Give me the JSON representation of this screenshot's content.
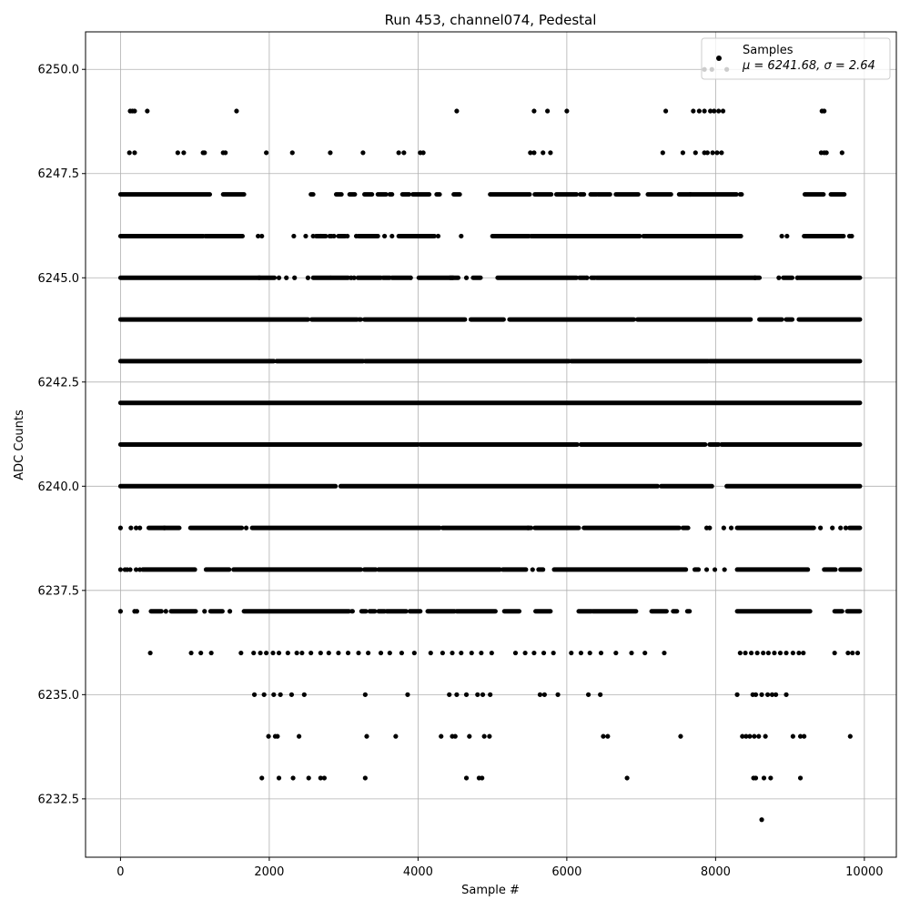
{
  "chart_data": {
    "type": "scatter",
    "title": "Run 453, channel074, Pedestal",
    "xlabel": "Sample #",
    "ylabel": "ADC Counts",
    "xlim": [
      -470,
      10430
    ],
    "ylim": [
      6231.1,
      6250.9
    ],
    "x_ticks": [
      0,
      2000,
      4000,
      6000,
      8000,
      10000
    ],
    "y_ticks": [
      6232.5,
      6235.0,
      6237.5,
      6240.0,
      6242.5,
      6245.0,
      6247.5,
      6250.0
    ],
    "x_tick_labels": [
      "0",
      "2000",
      "4000",
      "6000",
      "8000",
      "10000"
    ],
    "y_tick_labels": [
      "6232.5",
      "6235.0",
      "6237.5",
      "6240.0",
      "6242.5",
      "6245.0",
      "6247.5",
      "6250.0"
    ],
    "grid": true,
    "marker_color": "#000000",
    "legend": {
      "placement": "top-right",
      "entries": [
        {
          "label": "Samples",
          "stats": "μ = 6241.68, σ = 2.64"
        }
      ]
    },
    "series": [
      {
        "levels": [
          {
            "y": 6250,
            "x": [
              7850,
              7950,
              8150
            ]
          },
          {
            "y": 6249,
            "x": [
              130,
              160,
              190,
              360,
              1560,
              4520,
              5560,
              5740,
              6000,
              7330,
              7700,
              7780,
              7850,
              7930,
              7980,
              8040,
              8100,
              9430,
              9460
            ]
          },
          {
            "y": 6248,
            "x": [
              120,
              190,
              770,
              850,
              1110,
              1130,
              1380,
              1410,
              1960,
              2310,
              2820,
              3260,
              3740,
              3810,
              4030,
              4070,
              5510,
              5560,
              5680,
              5780,
              7290,
              7560,
              7730,
              7850,
              7890,
              7960,
              8020,
              8080,
              9420,
              9460,
              9490,
              9700
            ]
          },
          {
            "y": 6236,
            "x": [
              400,
              950,
              1080,
              1220,
              1620,
              1790,
              1880,
              1960,
              2050,
              2130,
              2250,
              2370,
              2440,
              2560,
              2690,
              2800,
              2930,
              3060,
              3200,
              3330,
              3500,
              3620,
              3780,
              3950,
              4170,
              4330,
              4460,
              4580,
              4720,
              4850,
              4990,
              5310,
              5440,
              5560,
              5690,
              5820,
              6060,
              6190,
              6310,
              6460,
              6660,
              6870,
              7050,
              7310,
              8330,
              8400,
              8480,
              8560,
              8640,
              8710,
              8790,
              8870,
              8950,
              9040,
              9120,
              9180,
              9600,
              9780,
              9840,
              9910
            ]
          },
          {
            "y": 6235,
            "x": [
              1800,
              1930,
              2060,
              2150,
              2300,
              2470,
              3290,
              3860,
              4420,
              4520,
              4650,
              4800,
              4870,
              4970,
              5640,
              5700,
              5880,
              6290,
              6450,
              8290,
              8500,
              8540,
              8620,
              8700,
              8760,
              8810,
              8950
            ]
          },
          {
            "y": 6234,
            "x": [
              1990,
              2080,
              2110,
              2400,
              3310,
              3700,
              4310,
              4460,
              4500,
              4690,
              4890,
              4960,
              6490,
              6550,
              7530,
              8360,
              8410,
              8460,
              8520,
              8580,
              8670,
              9040,
              9140,
              9190,
              9810
            ]
          },
          {
            "y": 6233,
            "x": [
              1900,
              2130,
              2320,
              2530,
              2690,
              2740,
              3290,
              4650,
              4820,
              4860,
              6810,
              8510,
              8540,
              8650,
              8740,
              9140
            ]
          },
          {
            "y": 6232,
            "x": [
              8620
            ]
          }
        ],
        "bands": [
          {
            "y": 6247,
            "x_ranges": [
              [
                0,
                1200
              ],
              [
                1380,
                1660
              ],
              [
                2560,
                2590
              ],
              [
                2900,
                2970
              ],
              [
                3080,
                3150
              ],
              [
                3280,
                3380
              ],
              [
                3460,
                3570
              ],
              [
                3620,
                3650
              ],
              [
                3790,
                3880
              ],
              [
                3930,
                4150
              ],
              [
                4250,
                4290
              ],
              [
                4480,
                4560
              ],
              [
                4970,
                5500
              ],
              [
                5570,
                5790
              ],
              [
                5860,
                6130
              ],
              [
                6180,
                6230
              ],
              [
                6320,
                6400
              ],
              [
                6420,
                6580
              ],
              [
                6660,
                6960
              ],
              [
                7090,
                7400
              ],
              [
                7510,
                7660
              ],
              [
                7660,
                8280
              ],
              [
                8330,
                8350
              ],
              [
                9200,
                9450
              ],
              [
                9550,
                9730
              ]
            ]
          },
          {
            "y": 6246,
            "x": [
              1850,
              1900,
              2330,
              2490,
              2590,
              2690,
              2870,
              3050,
              3170,
              3550,
              3650,
              4270,
              4580,
              8890,
              8960,
              9800,
              9830
            ],
            "x_ranges": [
              [
                0,
                1110
              ],
              [
                1140,
                1640
              ],
              [
                2630,
                2760
              ],
              [
                2810,
                2840
              ],
              [
                2930,
                3020
              ],
              [
                3200,
                3460
              ],
              [
                3740,
                4220
              ],
              [
                5000,
                5080
              ],
              [
                5090,
                5490
              ],
              [
                5520,
                6980
              ],
              [
                7030,
                8340
              ],
              [
                9190,
                9720
              ]
            ]
          },
          {
            "y": 6245,
            "x": [
              2130,
              2230,
              2340,
              2520,
              3100,
              3140,
              3900,
              4650,
              6270,
              8530,
              8850,
              9100
            ],
            "x_ranges": [
              [
                0,
                1870
              ],
              [
                1860,
                2070
              ],
              [
                2590,
                2820
              ],
              [
                2830,
                3060
              ],
              [
                3190,
                3500
              ],
              [
                3530,
                3620
              ],
              [
                3650,
                3880
              ],
              [
                4010,
                4470
              ],
              [
                4430,
                4540
              ],
              [
                4740,
                4840
              ],
              [
                5070,
                6130
              ],
              [
                6170,
                6250
              ],
              [
                6330,
                6380
              ],
              [
                6400,
                8590
              ],
              [
                8910,
                9030
              ],
              [
                9120,
                9940
              ]
            ]
          },
          {
            "y": 6244,
            "x_ranges": [
              [
                0,
                2520
              ],
              [
                2570,
                3180
              ],
              [
                3210,
                3230
              ],
              [
                3280,
                4630
              ],
              [
                4710,
                5150
              ],
              [
                5230,
                6900
              ],
              [
                6950,
                8470
              ],
              [
                8590,
                8890
              ],
              [
                8950,
                9030
              ],
              [
                9120,
                9940
              ]
            ]
          },
          {
            "y": 6243,
            "x_ranges": [
              [
                0,
                2060
              ],
              [
                2100,
                3260
              ],
              [
                3290,
                6030
              ],
              [
                6060,
                7900
              ],
              [
                7920,
                9940
              ]
            ]
          },
          {
            "y": 6242,
            "x_ranges": [
              [
                0,
                9940
              ]
            ]
          },
          {
            "y": 6241,
            "x_ranges": [
              [
                0,
                4000
              ],
              [
                4030,
                6140
              ],
              [
                6190,
                7860
              ],
              [
                7920,
                8040
              ],
              [
                8080,
                9940
              ]
            ]
          },
          {
            "y": 6240,
            "x_ranges": [
              [
                0,
                2890
              ],
              [
                2960,
                7220
              ],
              [
                7270,
                7950
              ],
              [
                8150,
                9940
              ]
            ]
          },
          {
            "y": 6239,
            "x": [
              0,
              140,
              210,
              260,
              590,
              1690,
              5480,
              7880,
              7920,
              8110,
              8210,
              9410,
              9570,
              9680,
              9750
            ],
            "x_ranges": [
              [
                380,
                790
              ],
              [
                940,
                1630
              ],
              [
                1770,
                4290
              ],
              [
                4330,
                5520
              ],
              [
                5570,
                6160
              ],
              [
                6230,
                7510
              ],
              [
                7560,
                7630
              ],
              [
                8290,
                9320
              ],
              [
                9800,
                9940
              ]
            ]
          },
          {
            "y": 6238,
            "x": [
              0,
              60,
              90,
              130,
              210,
              260,
              5540,
              7880,
              7990,
              8120
            ],
            "x_ranges": [
              [
                300,
                1000
              ],
              [
                1150,
                1460
              ],
              [
                1520,
                3230
              ],
              [
                3280,
                3430
              ],
              [
                3470,
                5100
              ],
              [
                5140,
                5450
              ],
              [
                5620,
                5680
              ],
              [
                5830,
                7600
              ],
              [
                7720,
                7770
              ],
              [
                8290,
                9240
              ],
              [
                9460,
                9610
              ],
              [
                9680,
                9940
              ]
            ]
          },
          {
            "y": 6237,
            "x": [
              0,
              190,
              220,
              610,
              1130,
              1470
            ],
            "x_ranges": [
              [
                410,
                550
              ],
              [
                680,
                1010
              ],
              [
                1210,
                1370
              ],
              [
                1660,
                3070
              ],
              [
                3110,
                3120
              ],
              [
                3240,
                3300
              ],
              [
                3350,
                3420
              ],
              [
                3470,
                3550
              ],
              [
                3580,
                3840
              ],
              [
                3890,
                4030
              ],
              [
                4130,
                4490
              ],
              [
                4520,
                5040
              ],
              [
                5160,
                5360
              ],
              [
                5580,
                5780
              ],
              [
                6160,
                6330
              ],
              [
                6350,
                6930
              ],
              [
                7140,
                7340
              ],
              [
                7430,
                7480
              ],
              [
                7620,
                7650
              ],
              [
                8290,
                9270
              ],
              [
                9600,
                9700
              ],
              [
                9770,
                9940
              ]
            ]
          }
        ]
      }
    ]
  }
}
